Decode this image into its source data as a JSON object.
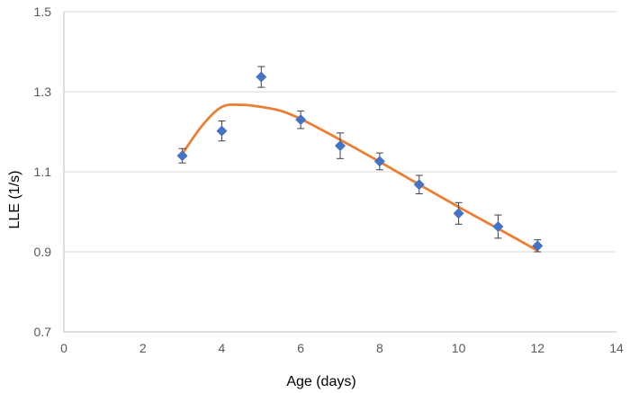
{
  "chart_data": {
    "type": "scatter",
    "title": "",
    "xlabel": "Age (days)",
    "ylabel": "LLE (1/s)",
    "xlim": [
      0,
      14
    ],
    "ylim": [
      0.7,
      1.5
    ],
    "xticks": [
      0,
      2,
      4,
      6,
      8,
      10,
      12,
      14
    ],
    "yticks": [
      0.7,
      0.9,
      1.1,
      1.3,
      1.5
    ],
    "ytick_labels": [
      "0.7",
      "0.9",
      "1.1",
      "1.3",
      "1.5"
    ],
    "grid": "horizontal",
    "legend": "none",
    "series": [
      {
        "type": "scatter",
        "marker": "diamond",
        "color": "#4472C4",
        "points": [
          {
            "x": 3,
            "y": 1.14,
            "err": 0.018
          },
          {
            "x": 4,
            "y": 1.202,
            "err": 0.025
          },
          {
            "x": 5,
            "y": 1.337,
            "err": 0.026
          },
          {
            "x": 6,
            "y": 1.23,
            "err": 0.022
          },
          {
            "x": 7,
            "y": 1.165,
            "err": 0.032
          },
          {
            "x": 8,
            "y": 1.126,
            "err": 0.021
          },
          {
            "x": 9,
            "y": 1.068,
            "err": 0.023
          },
          {
            "x": 10,
            "y": 0.996,
            "err": 0.027
          },
          {
            "x": 11,
            "y": 0.963,
            "err": 0.029
          },
          {
            "x": 12,
            "y": 0.915,
            "err": 0.015
          }
        ]
      },
      {
        "type": "line",
        "smooth": true,
        "color": "#ED7D31",
        "x": [
          3,
          3.5,
          4,
          4.5,
          5,
          5.5,
          6,
          7,
          8,
          9,
          10,
          11,
          12
        ],
        "y": [
          1.145,
          1.215,
          1.262,
          1.267,
          1.262,
          1.252,
          1.232,
          1.18,
          1.125,
          1.068,
          1.012,
          0.958,
          0.903
        ]
      }
    ]
  }
}
